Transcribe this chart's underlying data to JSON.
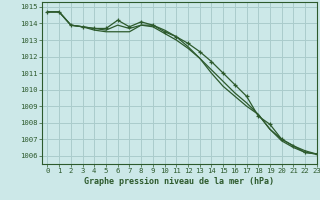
{
  "title": "Graphe pression niveau de la mer (hPa)",
  "bg_color": "#cce8e8",
  "grid_color": "#aacccc",
  "line_color": "#2d5a2d",
  "marker_color": "#2d5a2d",
  "xlim": [
    -0.5,
    23
  ],
  "ylim": [
    1005.5,
    1015.3
  ],
  "yticks": [
    1006,
    1007,
    1008,
    1009,
    1010,
    1011,
    1012,
    1013,
    1014,
    1015
  ],
  "xticks": [
    0,
    1,
    2,
    3,
    4,
    5,
    6,
    7,
    8,
    9,
    10,
    11,
    12,
    13,
    14,
    15,
    16,
    17,
    18,
    19,
    20,
    21,
    22,
    23
  ],
  "series": [
    [
      1014.7,
      1014.7,
      1013.9,
      1013.8,
      1013.7,
      1013.7,
      1014.2,
      1013.8,
      1014.1,
      1013.9,
      1013.5,
      1013.2,
      1012.8,
      1012.3,
      1011.7,
      1011.0,
      1010.3,
      1009.6,
      1008.4,
      1007.9,
      1007.0,
      1006.6,
      1006.2,
      1006.1
    ],
    [
      1014.7,
      1014.7,
      1013.9,
      1013.8,
      1013.7,
      1013.6,
      1013.9,
      1013.7,
      1013.9,
      1013.8,
      1013.4,
      1013.0,
      1012.5,
      1011.9,
      1011.2,
      1010.5,
      1009.8,
      1009.2,
      1008.5,
      1007.6,
      1007.0,
      1006.6,
      1006.3,
      1006.1
    ],
    [
      1014.7,
      1014.7,
      1013.9,
      1013.8,
      1013.6,
      1013.5,
      1013.5,
      1013.5,
      1013.9,
      1013.9,
      1013.6,
      1013.2,
      1012.6,
      1011.9,
      1011.0,
      1010.2,
      1009.6,
      1009.0,
      1008.5,
      1007.6,
      1006.9,
      1006.5,
      1006.2,
      1006.1
    ]
  ],
  "xlabel_fontsize": 6.0,
  "tick_fontsize": 5.2,
  "ylabel_fontsize": 5.2
}
